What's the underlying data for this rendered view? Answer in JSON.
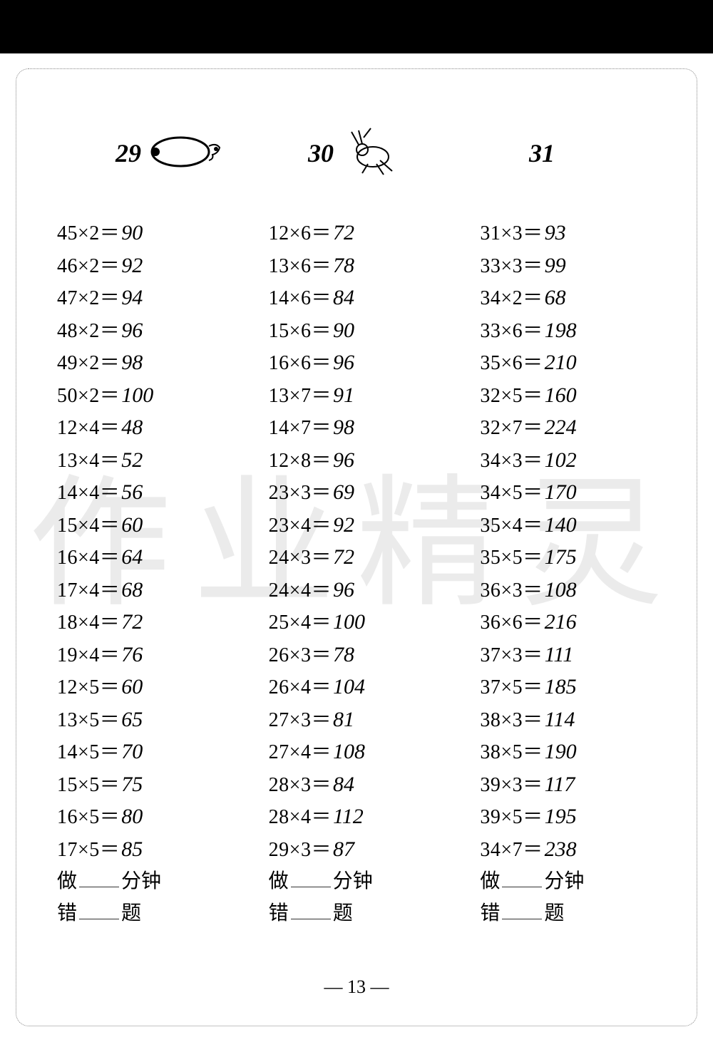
{
  "page_number": "13",
  "watermark_text": "作业精灵",
  "columns": [
    {
      "header": "29",
      "icon": "bread-bug",
      "problems": [
        {
          "expr": "45×2＝",
          "ans": "90"
        },
        {
          "expr": "46×2＝",
          "ans": "92"
        },
        {
          "expr": "47×2＝",
          "ans": "94"
        },
        {
          "expr": "48×2＝",
          "ans": "96"
        },
        {
          "expr": "49×2＝",
          "ans": "98"
        },
        {
          "expr": "50×2＝",
          "ans": "100"
        },
        {
          "expr": "12×4＝",
          "ans": "48"
        },
        {
          "expr": "13×4＝",
          "ans": "52"
        },
        {
          "expr": "14×4＝",
          "ans": "56"
        },
        {
          "expr": "15×4＝",
          "ans": "60"
        },
        {
          "expr": "16×4＝",
          "ans": "64"
        },
        {
          "expr": "17×4＝",
          "ans": "68"
        },
        {
          "expr": "18×4＝",
          "ans": "72"
        },
        {
          "expr": "19×4＝",
          "ans": "76"
        },
        {
          "expr": "12×5＝",
          "ans": "60"
        },
        {
          "expr": "13×5＝",
          "ans": "65"
        },
        {
          "expr": "14×5＝",
          "ans": "70"
        },
        {
          "expr": "15×5＝",
          "ans": "75"
        },
        {
          "expr": "16×5＝",
          "ans": "80"
        },
        {
          "expr": "17×5＝",
          "ans": "85"
        }
      ]
    },
    {
      "header": "30",
      "icon": "cricket",
      "problems": [
        {
          "expr": "12×6＝",
          "ans": "72"
        },
        {
          "expr": "13×6＝",
          "ans": "78"
        },
        {
          "expr": "14×6＝",
          "ans": "84"
        },
        {
          "expr": "15×6＝",
          "ans": "90"
        },
        {
          "expr": "16×6＝",
          "ans": "96"
        },
        {
          "expr": "13×7＝",
          "ans": "91"
        },
        {
          "expr": "14×7＝",
          "ans": "98"
        },
        {
          "expr": "12×8＝",
          "ans": "96"
        },
        {
          "expr": "23×3＝",
          "ans": "69"
        },
        {
          "expr": "23×4＝",
          "ans": "92"
        },
        {
          "expr": "24×3＝",
          "ans": "72"
        },
        {
          "expr": "24×4＝",
          "ans": "96"
        },
        {
          "expr": "25×4＝",
          "ans": "100"
        },
        {
          "expr": "26×3＝",
          "ans": "78"
        },
        {
          "expr": "26×4＝",
          "ans": "104"
        },
        {
          "expr": "27×3＝",
          "ans": "81"
        },
        {
          "expr": "27×4＝",
          "ans": "108"
        },
        {
          "expr": "28×3＝",
          "ans": "84"
        },
        {
          "expr": "28×4＝",
          "ans": "112"
        },
        {
          "expr": "29×3＝",
          "ans": "87"
        }
      ]
    },
    {
      "header": "31",
      "icon": "none",
      "problems": [
        {
          "expr": "31×3＝",
          "ans": "93"
        },
        {
          "expr": "33×3＝",
          "ans": "99"
        },
        {
          "expr": "34×2＝",
          "ans": "68"
        },
        {
          "expr": "33×6＝",
          "ans": "198"
        },
        {
          "expr": "35×6＝",
          "ans": "210"
        },
        {
          "expr": "32×5＝",
          "ans": "160"
        },
        {
          "expr": "32×7＝",
          "ans": "224"
        },
        {
          "expr": "34×3＝",
          "ans": "102"
        },
        {
          "expr": "34×5＝",
          "ans": "170"
        },
        {
          "expr": "35×4＝",
          "ans": "140"
        },
        {
          "expr": "35×5＝",
          "ans": "175"
        },
        {
          "expr": "36×3＝",
          "ans": "108"
        },
        {
          "expr": "36×6＝",
          "ans": "216"
        },
        {
          "expr": "37×3＝",
          "ans": "111"
        },
        {
          "expr": "37×5＝",
          "ans": "185"
        },
        {
          "expr": "38×3＝",
          "ans": "114"
        },
        {
          "expr": "38×5＝",
          "ans": "190"
        },
        {
          "expr": "39×3＝",
          "ans": "117"
        },
        {
          "expr": "39×5＝",
          "ans": "195"
        },
        {
          "expr": "34×7＝",
          "ans": "238"
        }
      ]
    }
  ],
  "footer": {
    "do_label": "做",
    "minutes_label": "分钟",
    "wrong_label": "错",
    "questions_label": "题"
  }
}
